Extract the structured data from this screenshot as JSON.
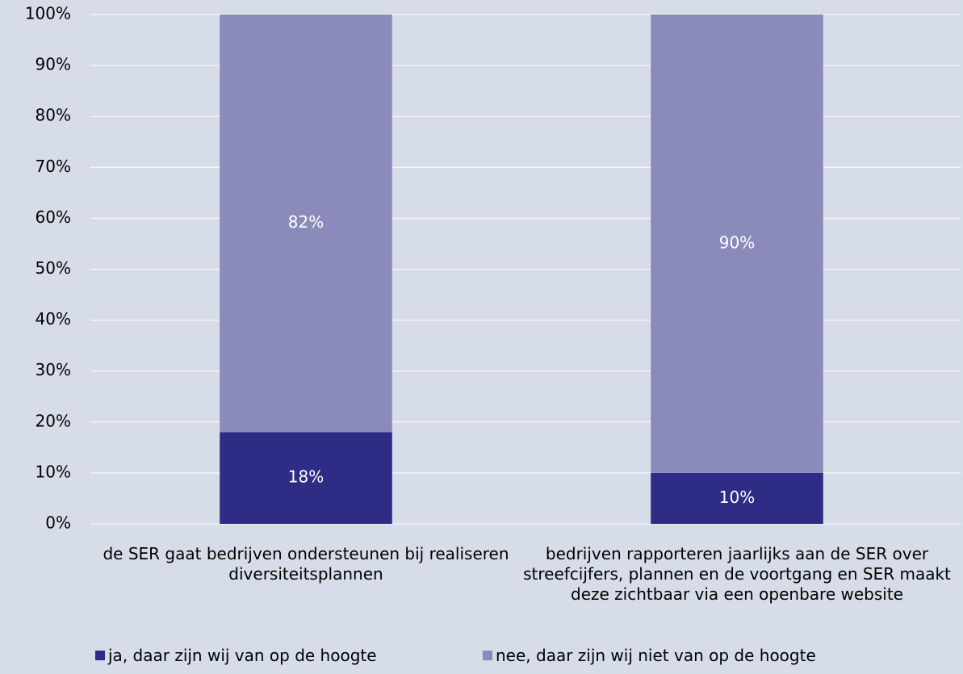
{
  "chart_data": {
    "type": "stacked_bar",
    "categories": [
      "de SER gaat bedrijven ondersteunen bij realiseren diversiteitsplannen",
      "bedrijven rapporteren jaarlijks aan de SER over streefcijfers, plannen en de voortgang en SER maakt deze zichtbaar via een openbare website"
    ],
    "series": [
      {
        "name": "ja, daar zijn wij van op de hoogte",
        "color": "#2e2c84",
        "values": [
          18,
          10
        ],
        "value_labels": [
          "18%",
          "10%"
        ]
      },
      {
        "name": "nee, daar zijn wij niet van op de hoogte",
        "color": "#8a8bba",
        "values": [
          82,
          90
        ],
        "value_labels": [
          "82%",
          "90%"
        ]
      }
    ],
    "ylim": [
      0,
      100
    ],
    "yticks": [
      {
        "value": 0,
        "label": "0%"
      },
      {
        "value": 10,
        "label": "10%"
      },
      {
        "value": 20,
        "label": "20%"
      },
      {
        "value": 30,
        "label": "30%"
      },
      {
        "value": 40,
        "label": "40%"
      },
      {
        "value": 50,
        "label": "50%"
      },
      {
        "value": 60,
        "label": "60%"
      },
      {
        "value": 70,
        "label": "70%"
      },
      {
        "value": 80,
        "label": "80%"
      },
      {
        "value": 90,
        "label": "90%"
      },
      {
        "value": 100,
        "label": "100%"
      }
    ],
    "grid": true,
    "legend": "bottom"
  }
}
